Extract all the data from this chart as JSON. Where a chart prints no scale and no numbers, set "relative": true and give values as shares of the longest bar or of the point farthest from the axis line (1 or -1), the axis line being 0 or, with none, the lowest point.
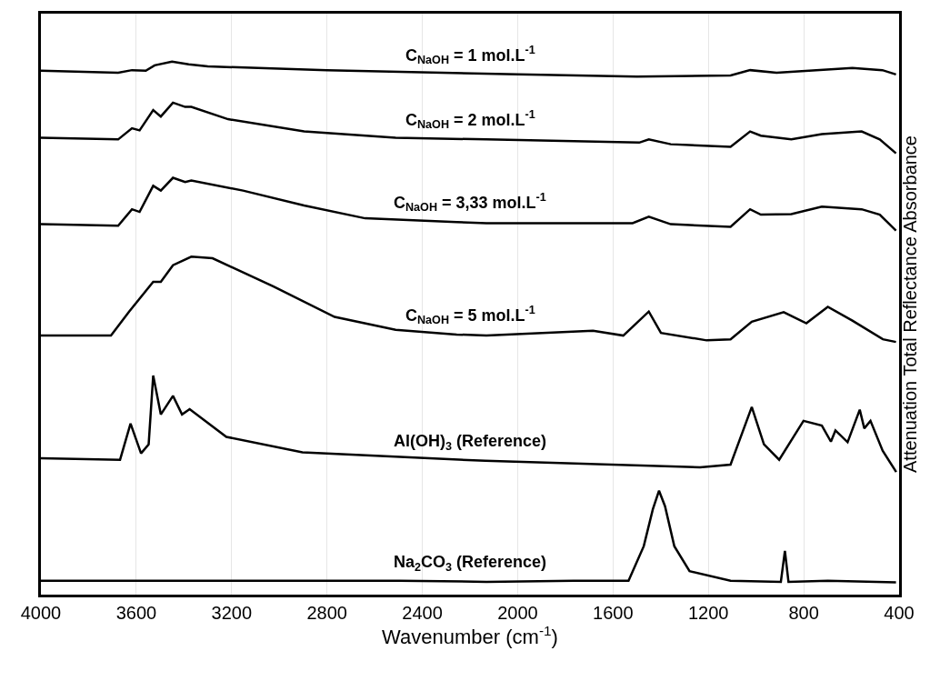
{
  "chart_data": {
    "type": "line",
    "relative": true,
    "xlabel": "Wavenumber (cm$^{-1}$)",
    "ylabel": "Attenuation Total Reflectance Absorbance",
    "xlim": [
      4000,
      400
    ],
    "xticks": [
      4000,
      3600,
      3200,
      2800,
      2400,
      2000,
      1600,
      1200,
      800,
      400
    ],
    "grid": "x",
    "legend": false,
    "marker": "none",
    "line_style": "solid",
    "series": [
      {
        "name": "C$_{NaOH}$ = 1 mol.L$^{-1}$",
        "color": "#000000",
        "x": [
          4000,
          3676,
          3618,
          3560,
          3523,
          3450,
          3380,
          3300,
          2800,
          2000,
          1500,
          1107,
          1025,
          914,
          596,
          470,
          413
        ],
        "values": [
          0.983,
          0.979,
          0.984,
          0.983,
          0.993,
          1.0,
          0.995,
          0.991,
          0.984,
          0.976,
          0.972,
          0.974,
          0.984,
          0.979,
          0.988,
          0.984,
          0.976
        ]
      },
      {
        "name": "C$_{NaOH}$ = 2 mol.L$^{-1}$",
        "color": "#000000",
        "x": [
          4000,
          3676,
          3618,
          3586,
          3529,
          3497,
          3446,
          3395,
          3369,
          3215,
          2896,
          2512,
          2131,
          1490,
          1450,
          1358,
          1107,
          1025,
          980,
          852,
          724,
          557,
          481,
          413
        ],
        "values": [
          0.857,
          0.854,
          0.875,
          0.871,
          0.909,
          0.897,
          0.923,
          0.915,
          0.915,
          0.892,
          0.869,
          0.857,
          0.854,
          0.848,
          0.854,
          0.845,
          0.84,
          0.869,
          0.861,
          0.854,
          0.864,
          0.869,
          0.854,
          0.828
        ]
      },
      {
        "name": "C$_{NaOH}$ = 3,33 mol.L$^{-1}$",
        "color": "#000000",
        "x": [
          4000,
          3676,
          3618,
          3586,
          3529,
          3497,
          3446,
          3395,
          3369,
          3152,
          2896,
          2640,
          2256,
          2131,
          1518,
          1450,
          1358,
          1107,
          1025,
          980,
          852,
          724,
          557,
          481,
          413
        ],
        "values": [
          0.695,
          0.692,
          0.723,
          0.718,
          0.767,
          0.758,
          0.782,
          0.774,
          0.777,
          0.758,
          0.73,
          0.706,
          0.699,
          0.697,
          0.697,
          0.709,
          0.695,
          0.69,
          0.723,
          0.713,
          0.714,
          0.728,
          0.723,
          0.713,
          0.683
        ]
      },
      {
        "name": "C$_{NaOH}$ = 5 mol.L$^{-1}$",
        "color": "#000000",
        "x": [
          4000,
          3706,
          3630,
          3529,
          3497,
          3446,
          3369,
          3280,
          3024,
          2768,
          2512,
          2256,
          2131,
          1684,
          1557,
          1450,
          1399,
          1207,
          1107,
          1018,
          884,
          789,
          699,
          596,
          468,
          413
        ],
        "values": [
          0.486,
          0.486,
          0.531,
          0.587,
          0.587,
          0.618,
          0.634,
          0.631,
          0.578,
          0.521,
          0.497,
          0.488,
          0.486,
          0.495,
          0.486,
          0.531,
          0.491,
          0.477,
          0.479,
          0.512,
          0.53,
          0.509,
          0.54,
          0.514,
          0.479,
          0.474
        ]
      },
      {
        "name": "Al(OH)$_{3}$ (Reference)",
        "color": "#000000",
        "x": [
          4000,
          3668,
          3624,
          3580,
          3548,
          3529,
          3497,
          3446,
          3408,
          3376,
          3222,
          2903,
          2136,
          1235,
          1107,
          1018,
          967,
          903,
          801,
          724,
          686,
          667,
          616,
          565,
          546,
          520,
          469,
          412
        ],
        "values": [
          0.256,
          0.253,
          0.321,
          0.265,
          0.282,
          0.411,
          0.338,
          0.373,
          0.338,
          0.348,
          0.296,
          0.267,
          0.251,
          0.239,
          0.244,
          0.352,
          0.282,
          0.253,
          0.326,
          0.317,
          0.287,
          0.308,
          0.286,
          0.347,
          0.312,
          0.326,
          0.27,
          0.23
        ]
      },
      {
        "name": "Na$_{2}$CO$_{3}$ (Reference)",
        "color": "#000000",
        "x": [
          4000,
          2497,
          2131,
          1765,
          1535,
          1471,
          1433,
          1407,
          1382,
          1343,
          1279,
          1107,
          896,
          879,
          864,
          699,
          413
        ],
        "values": [
          0.026,
          0.026,
          0.024,
          0.026,
          0.026,
          0.091,
          0.16,
          0.195,
          0.166,
          0.091,
          0.044,
          0.026,
          0.024,
          0.082,
          0.024,
          0.026,
          0.023
        ]
      }
    ]
  }
}
